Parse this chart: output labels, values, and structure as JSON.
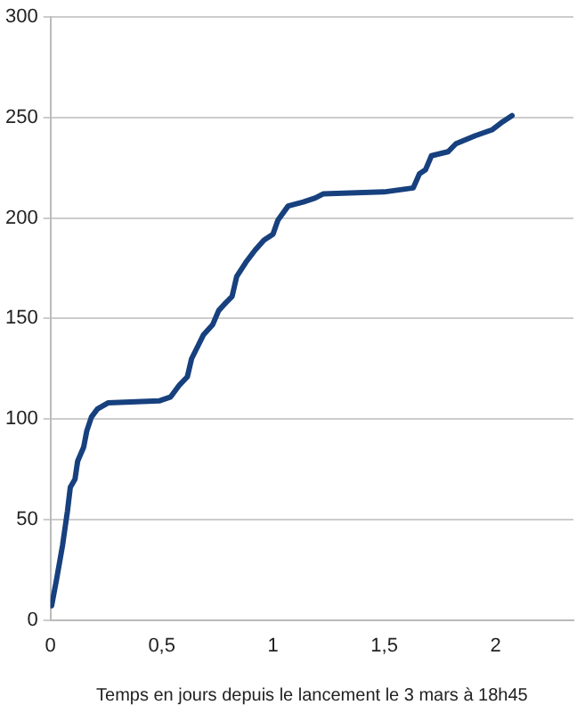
{
  "chart_data": {
    "type": "line",
    "xlabel": "Temps en jours depuis le lancement le 3 mars à 18h45",
    "x": [
      0.005,
      0.027,
      0.054,
      0.076,
      0.089,
      0.11,
      0.122,
      0.149,
      0.163,
      0.184,
      0.211,
      0.258,
      0.488,
      0.54,
      0.58,
      0.615,
      0.634,
      0.661,
      0.688,
      0.729,
      0.756,
      0.789,
      0.816,
      0.837,
      0.878,
      0.919,
      0.959,
      1.0,
      1.022,
      1.068,
      1.136,
      1.19,
      1.225,
      1.499,
      1.63,
      1.658,
      1.685,
      1.712,
      1.786,
      1.822,
      1.909,
      1.986,
      2.033,
      2.074
    ],
    "series": [
      {
        "color": "#17407e",
        "values": [
          7,
          20,
          37,
          54,
          66,
          70,
          79,
          86,
          94,
          101,
          105,
          108,
          109,
          111,
          117,
          121,
          130,
          136,
          142,
          147,
          154,
          158,
          161,
          171,
          178,
          184,
          189,
          192,
          199,
          206,
          208,
          210,
          212,
          213,
          215,
          222,
          224,
          231,
          233,
          237,
          241,
          244,
          248,
          251
        ]
      }
    ],
    "xlim": [
      0,
      2.35
    ],
    "xticks": [
      0,
      {
        "value": 0.5,
        "label": "0,5"
      },
      1,
      {
        "value": 1.5,
        "label": "1,5"
      },
      2
    ],
    "ylim": [
      0,
      300
    ],
    "yticks": [
      0,
      50,
      100,
      150,
      200,
      250,
      300
    ],
    "grid": "y",
    "legend": false,
    "marker": "none",
    "line_style": "solid"
  }
}
